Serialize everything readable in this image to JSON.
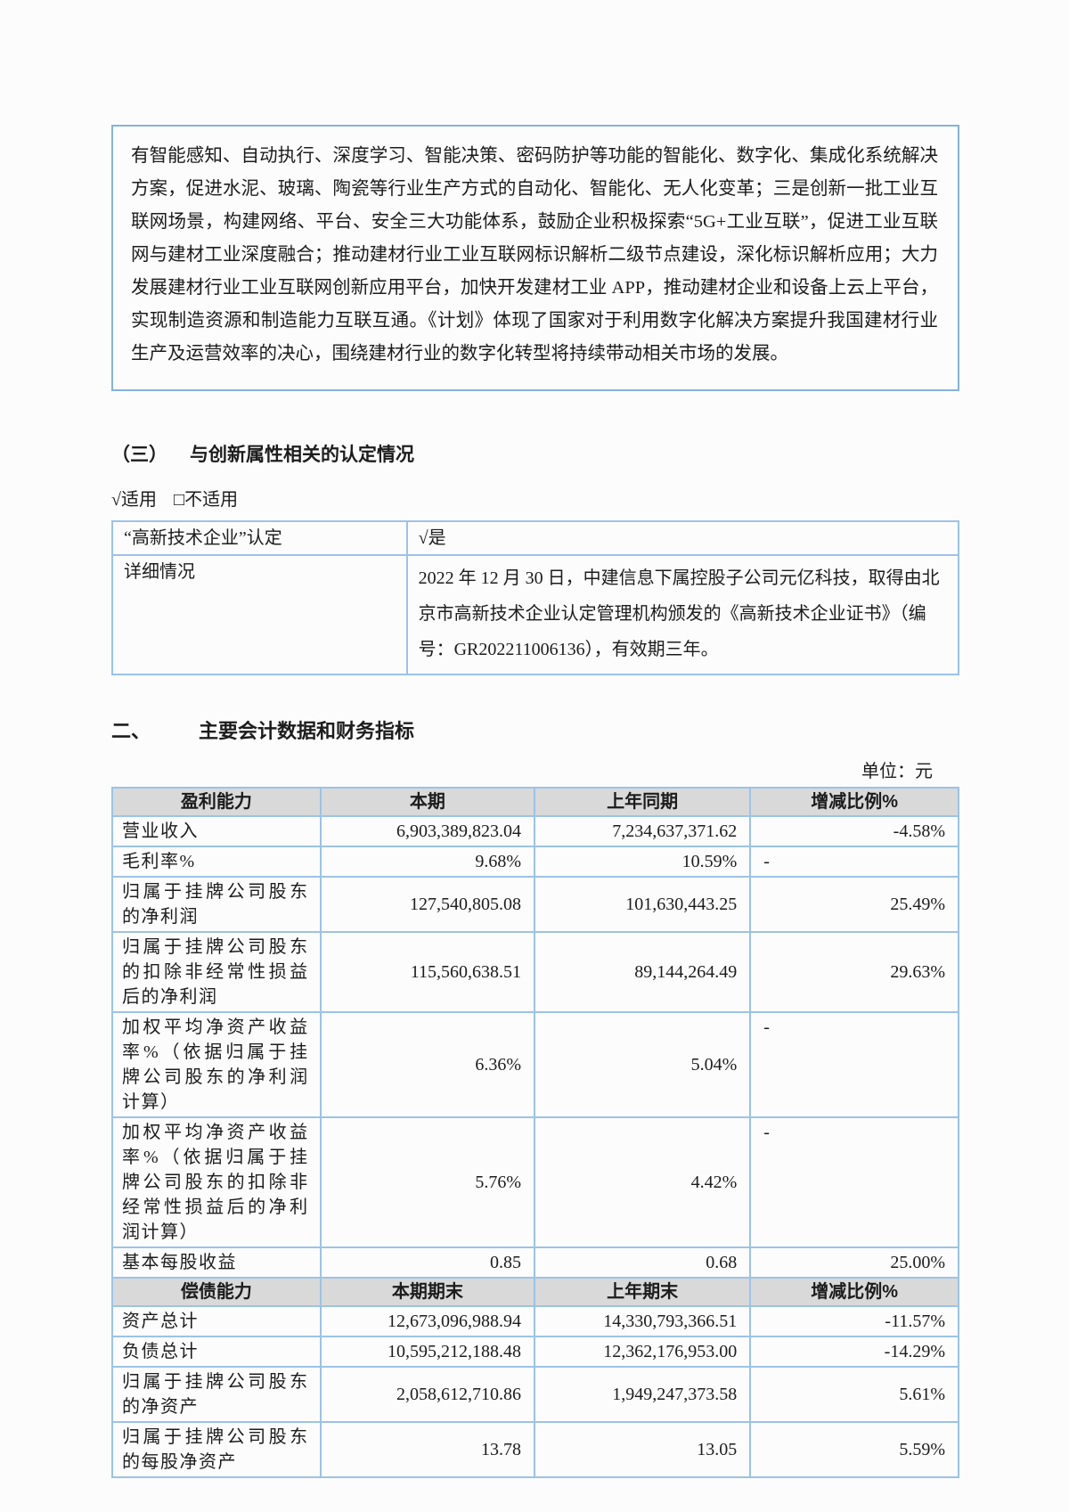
{
  "colors": {
    "accent-border": "#9CC3E6",
    "block-border": "#85B3D9",
    "header-bg": "#D9D9D9",
    "text": "#1C1C1C",
    "page-bg": "#FCFCFC"
  },
  "intro_block": {
    "text": "有智能感知、自动执行、深度学习、智能决策、密码防护等功能的智能化、数字化、集成化系统解决方案，促进水泥、玻璃、陶瓷等行业生产方式的自动化、智能化、无人化变革；三是创新一批工业互联网场景，构建网络、平台、安全三大功能体系，鼓励企业积极探索“5G+工业互联”，促进工业互联网与建材工业深度融合；推动建材行业工业互联网标识解析二级节点建设，深化标识解析应用；大力发展建材行业工业互联网创新应用平台，加快开发建材工业 APP，推动建材企业和设备上云上平台，实现制造资源和制造能力互联互通。《计划》体现了国家对于利用数字化解决方案提升我国建材行业生产及运营效率的决心，围绕建材行业的数字化转型将持续带动相关市场的发展。"
  },
  "section3": {
    "heading_num": "（三）",
    "heading_title": "与创新属性相关的认定情况",
    "applicable": "√适用",
    "not_applicable": "□不适用",
    "cert_table": {
      "row1_label": "“高新技术企业”认定",
      "row1_value": "√是",
      "row2_label": "详细情况",
      "row2_value": "2022 年 12 月 30 日，中建信息下属控股子公司元亿科技，取得由北京市高新技术企业认定管理机构颁发的《高新技术企业证书》（编号：GR202211006136），有效期三年。"
    }
  },
  "section2": {
    "heading_num": "二、",
    "heading_title": "主要会计数据和财务指标",
    "unit_label": "单位：元"
  },
  "financial_table": {
    "header1": {
      "col1": "盈利能力",
      "col2": "本期",
      "col3": "上年同期",
      "col4": "增减比例%"
    },
    "rows1": [
      {
        "label": "营业收入",
        "current": "6,903,389,823.04",
        "prior": "7,234,637,371.62",
        "change": "-4.58%"
      },
      {
        "label": "毛利率%",
        "current": "9.68%",
        "prior": "10.59%",
        "change": "-"
      },
      {
        "label": "归属于挂牌公司股东的净利润",
        "current": "127,540,805.08",
        "prior": "101,630,443.25",
        "change": "25.49%"
      },
      {
        "label": "归属于挂牌公司股东的扣除非经常性损益后的净利润",
        "current": "115,560,638.51",
        "prior": "89,144,264.49",
        "change": "29.63%"
      },
      {
        "label": "加权平均净资产收益率%（依据归属于挂牌公司股东的净利润计算）",
        "current": "6.36%",
        "prior": "5.04%",
        "change": "-"
      },
      {
        "label": "加权平均净资产收益率%（依据归属于挂牌公司股东的扣除非经常性损益后的净利润计算）",
        "current": "5.76%",
        "prior": "4.42%",
        "change": "-"
      },
      {
        "label": "基本每股收益",
        "current": "0.85",
        "prior": "0.68",
        "change": "25.00%"
      }
    ],
    "header2": {
      "col1": "偿债能力",
      "col2": "本期期末",
      "col3": "上年期末",
      "col4": "增减比例%"
    },
    "rows2": [
      {
        "label": "资产总计",
        "current": "12,673,096,988.94",
        "prior": "14,330,793,366.51",
        "change": "-11.57%"
      },
      {
        "label": "负债总计",
        "current": "10,595,212,188.48",
        "prior": "12,362,176,953.00",
        "change": "-14.29%"
      },
      {
        "label": "归属于挂牌公司股东的净资产",
        "current": "2,058,612,710.86",
        "prior": "1,949,247,373.58",
        "change": "5.61%"
      },
      {
        "label": "归属于挂牌公司股东的每股净资产",
        "current": "13.78",
        "prior": "13.05",
        "change": "5.59%"
      }
    ]
  }
}
